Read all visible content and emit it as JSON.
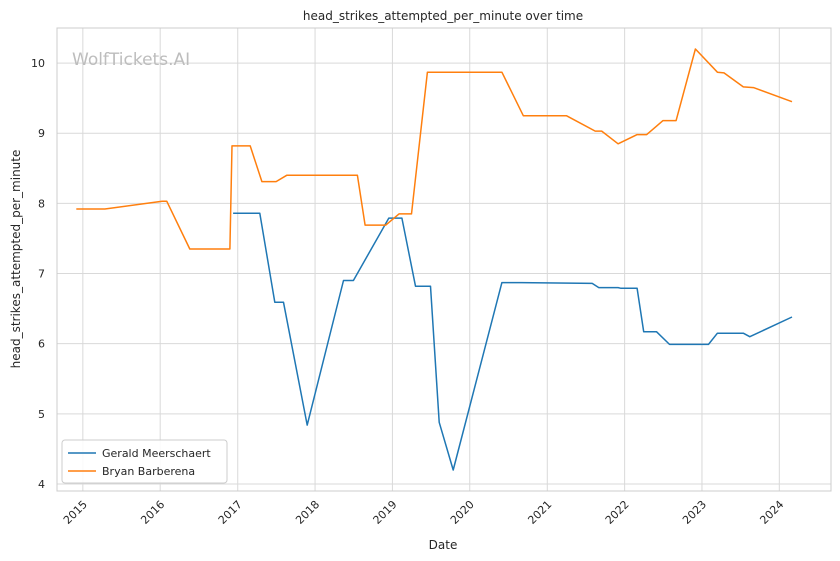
{
  "chart_data": {
    "type": "line",
    "title": "head_strikes_attempted_per_minute over time",
    "xlabel": "Date",
    "ylabel": "head_strikes_attempted_per_minute",
    "watermark": "WolfTickets.AI",
    "x_ticks": [
      "2015",
      "2016",
      "2017",
      "2018",
      "2019",
      "2020",
      "2021",
      "2022",
      "2023",
      "2024"
    ],
    "y_ticks": [
      "4",
      "5",
      "6",
      "7",
      "8",
      "9",
      "10"
    ],
    "xlim": [
      "2014-09-01",
      "2024-09-01"
    ],
    "ylim": [
      3.9,
      10.5
    ],
    "grid": true,
    "legend": "lower-left",
    "colors": {
      "Gerald Meerschaert": "#1f77b4",
      "Bryan Barberena": "#ff7f0e"
    },
    "series": [
      {
        "name": "Gerald Meerschaert",
        "color": "#1f77b4",
        "points": [
          [
            "2016-12-10",
            7.86
          ],
          [
            "2017-04-15",
            7.86
          ],
          [
            "2017-06-25",
            6.59
          ],
          [
            "2017-08-05",
            6.59
          ],
          [
            "2017-11-25",
            4.84
          ],
          [
            "2018-05-15",
            6.9
          ],
          [
            "2018-07-01",
            6.9
          ],
          [
            "2018-12-15",
            7.79
          ],
          [
            "2019-02-15",
            7.79
          ],
          [
            "2019-04-20",
            6.82
          ],
          [
            "2019-06-30",
            6.82
          ],
          [
            "2019-08-10",
            4.88
          ],
          [
            "2019-10-15",
            4.2
          ],
          [
            "2020-06-01",
            6.87
          ],
          [
            "2020-09-01",
            6.87
          ],
          [
            "2021-08-01",
            6.86
          ],
          [
            "2021-09-01",
            6.8
          ],
          [
            "2021-12-01",
            6.8
          ],
          [
            "2021-12-15",
            6.79
          ],
          [
            "2022-03-01",
            6.79
          ],
          [
            "2022-04-01",
            6.17
          ],
          [
            "2022-06-01",
            6.17
          ],
          [
            "2022-08-01",
            5.99
          ],
          [
            "2023-02-01",
            5.99
          ],
          [
            "2023-03-15",
            6.15
          ],
          [
            "2023-07-15",
            6.15
          ],
          [
            "2023-08-15",
            6.1
          ],
          [
            "2024-03-01",
            6.38
          ]
        ]
      },
      {
        "name": "Bryan Barberena",
        "color": "#ff7f0e",
        "points": [
          [
            "2014-12-01",
            7.92
          ],
          [
            "2015-04-15",
            7.92
          ],
          [
            "2016-01-10",
            8.03
          ],
          [
            "2016-02-01",
            8.03
          ],
          [
            "2016-05-20",
            7.35
          ],
          [
            "2016-11-25",
            7.35
          ],
          [
            "2016-12-05",
            8.82
          ],
          [
            "2017-03-01",
            8.82
          ],
          [
            "2017-04-25",
            8.31
          ],
          [
            "2017-07-01",
            8.31
          ],
          [
            "2017-08-20",
            8.4
          ],
          [
            "2018-07-20",
            8.4
          ],
          [
            "2018-08-25",
            7.69
          ],
          [
            "2018-12-01",
            7.69
          ],
          [
            "2019-02-01",
            7.85
          ],
          [
            "2019-04-01",
            7.85
          ],
          [
            "2019-06-15",
            9.87
          ],
          [
            "2020-06-01",
            9.87
          ],
          [
            "2020-09-10",
            9.25
          ],
          [
            "2021-04-01",
            9.25
          ],
          [
            "2021-08-15",
            9.03
          ],
          [
            "2021-09-15",
            9.03
          ],
          [
            "2021-12-01",
            8.85
          ],
          [
            "2022-03-01",
            8.98
          ],
          [
            "2022-04-15",
            8.98
          ],
          [
            "2022-07-01",
            9.18
          ],
          [
            "2022-09-01",
            9.18
          ],
          [
            "2022-12-01",
            10.2
          ],
          [
            "2023-03-15",
            9.87
          ],
          [
            "2023-04-15",
            9.86
          ],
          [
            "2023-07-15",
            9.66
          ],
          [
            "2023-09-01",
            9.65
          ],
          [
            "2024-03-01",
            9.45
          ]
        ]
      }
    ]
  }
}
